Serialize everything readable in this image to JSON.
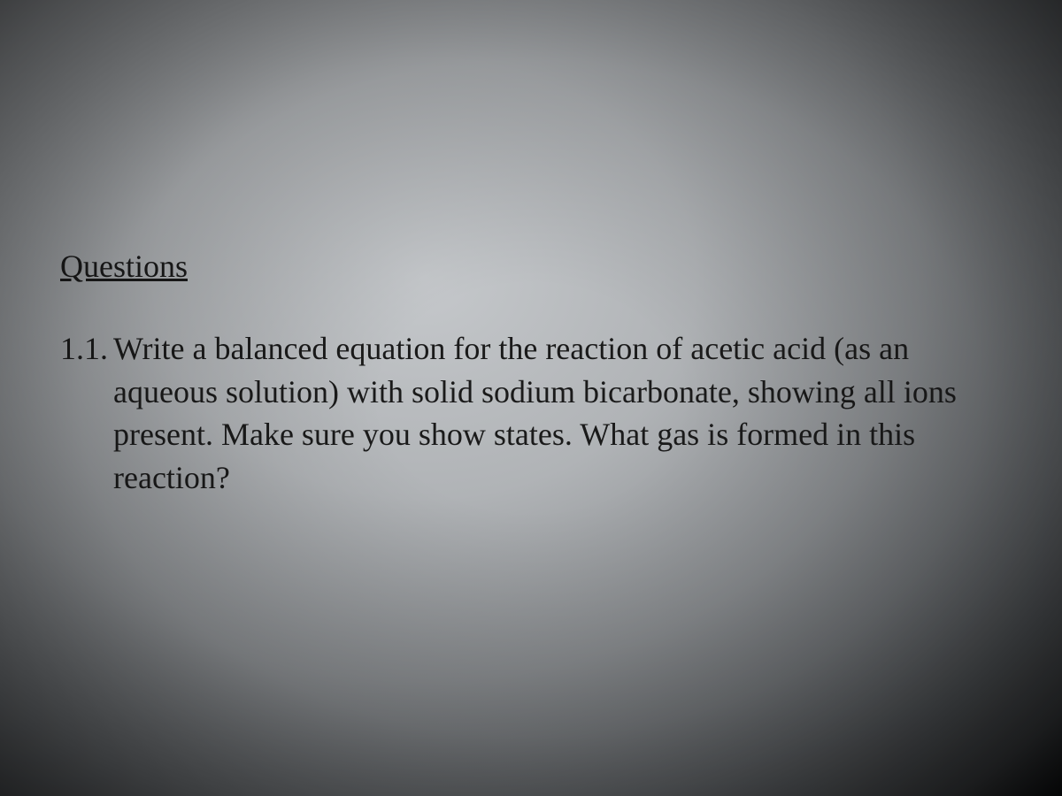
{
  "document": {
    "heading": "Questions",
    "question": {
      "number": "1.1.",
      "text": "Write a balanced equation for the reaction of acetic acid (as an aqueous solution) with solid sodium bicarbonate, showing all ions present. Make sure you show states. What gas is formed in this reaction?"
    },
    "text_color": "#1a1a1a",
    "font_family": "Times New Roman",
    "heading_fontsize": 36,
    "body_fontsize": 36
  }
}
